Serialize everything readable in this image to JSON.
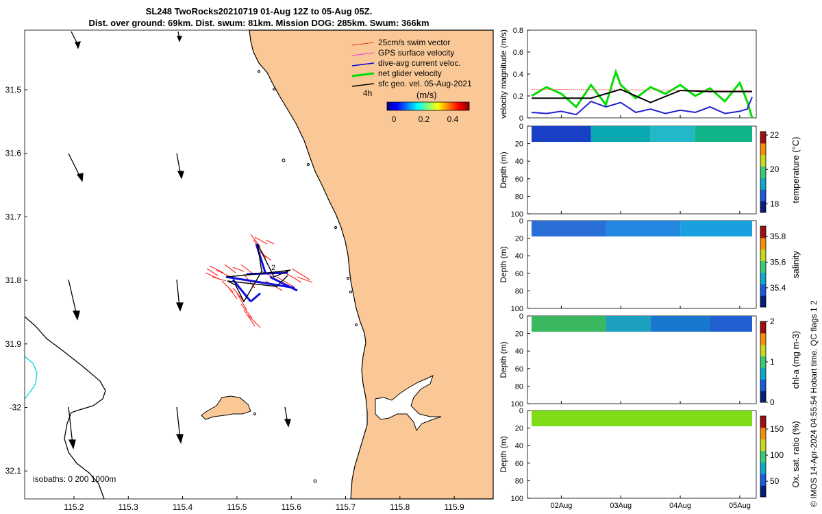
{
  "title": {
    "line1": "SL248 TwoRocks20210719 01-Aug 12Z to 05-Aug 05Z.",
    "line2": "Dist. over ground: 69km. Dist. swum: 81km. Mission DOG: 285km. Swum: 366km"
  },
  "map": {
    "lat_ticks": [
      "31.5",
      "31.6",
      "31.7",
      "31.8",
      "31.9",
      "-32",
      "32.1"
    ],
    "lon_ticks": [
      "115.2",
      "115.3",
      "115.4",
      "115.5",
      "115.6",
      "115.7",
      "115.8",
      "115.9"
    ],
    "legend": [
      {
        "label": "25cm/s swim vector",
        "color": "#e00000"
      },
      {
        "label": "GPS surface velocity",
        "color": "#e000e0"
      },
      {
        "label": "dive-avg current veloc.",
        "color": "#0000e0"
      },
      {
        "label": "net glider velocity",
        "color": "#00dd00"
      },
      {
        "label": "sfc geo. vel. 05-Aug-2021",
        "color": "#000000"
      }
    ],
    "time_label": "4h",
    "colorbar_unit": "(m/s)",
    "colorbar_ticks": [
      "0",
      "0.2",
      "0.4"
    ],
    "isobaths_label": "isobaths: 0   200  1000m",
    "waypoint_label": "2",
    "land_color": "#f9c896"
  },
  "credit": "© IMOS 14-Apr-2024 04:55:54 Hobart time. QC flags 1  2",
  "chart_data": [
    {
      "type": "line",
      "ylabel": "velocity magnitude (m/s)",
      "ylim": [
        0,
        0.8
      ],
      "yticks": [
        "0",
        "0.2",
        "0.4",
        "0.6",
        "0.8"
      ],
      "xlim": [
        "2021-08-01T12:00",
        "2021-08-05T05:00"
      ],
      "series": [
        {
          "color": "#00dd00",
          "x": [
            "2021-08-01T12:00",
            "2021-08-01T18:00",
            "2021-08-02T00:00",
            "2021-08-02T06:00",
            "2021-08-02T12:00",
            "2021-08-02T18:00",
            "2021-08-02T22:00",
            "2021-08-03T00:00",
            "2021-08-03T06:00",
            "2021-08-03T12:00",
            "2021-08-03T18:00",
            "2021-08-04T00:00",
            "2021-08-04T06:00",
            "2021-08-04T12:00",
            "2021-08-04T18:00",
            "2021-08-05T00:00",
            "2021-08-05T03:00",
            "2021-08-05T05:00"
          ],
          "y": [
            0.2,
            0.28,
            0.22,
            0.1,
            0.3,
            0.12,
            0.42,
            0.3,
            0.18,
            0.28,
            0.22,
            0.3,
            0.2,
            0.27,
            0.15,
            0.32,
            0.15,
            0
          ]
        },
        {
          "color": "#2020d0",
          "x": [
            "2021-08-01T12:00",
            "2021-08-01T18:00",
            "2021-08-02T00:00",
            "2021-08-02T06:00",
            "2021-08-02T12:00",
            "2021-08-02T18:00",
            "2021-08-03T00:00",
            "2021-08-03T06:00",
            "2021-08-03T12:00",
            "2021-08-03T18:00",
            "2021-08-04T00:00",
            "2021-08-04T06:00",
            "2021-08-04T12:00",
            "2021-08-04T18:00",
            "2021-08-05T00:00",
            "2021-08-05T03:00",
            "2021-08-05T05:00"
          ],
          "y": [
            0.05,
            0.04,
            0.06,
            0.03,
            0.15,
            0.1,
            0.14,
            0.05,
            0.08,
            0.04,
            0.07,
            0.05,
            0.1,
            0.04,
            0.06,
            0.08,
            0.19
          ]
        },
        {
          "color": "#ff6060",
          "x": [
            "2021-08-01T12:00",
            "2021-08-05T05:00"
          ],
          "y": [
            0.26,
            0.25
          ]
        },
        {
          "color": "#000000",
          "x": [
            "2021-08-01T12:00",
            "2021-08-02T12:00",
            "2021-08-03T00:00",
            "2021-08-03T12:00",
            "2021-08-04T00:00",
            "2021-08-04T12:00",
            "2021-08-05T05:00"
          ],
          "y": [
            0.18,
            0.18,
            0.26,
            0.14,
            0.25,
            0.24,
            0.24
          ]
        }
      ]
    },
    {
      "type": "heatmap",
      "ylabel": "Depth (m)",
      "ylim": [
        0,
        100
      ],
      "yticks": [
        "0",
        "20",
        "40",
        "60",
        "80",
        "100"
      ],
      "colorbar_label": "temperature (°C)",
      "colorbar_ticks": [
        "18",
        "20",
        "22"
      ],
      "colorbar_range": [
        17.5,
        22.2
      ],
      "depth_range": [
        0,
        18
      ],
      "segments": [
        {
          "x_start": "2021-08-01T12:00",
          "x_end": "2021-08-02T12:00",
          "color": "#1a40c8"
        },
        {
          "x_start": "2021-08-02T12:00",
          "x_end": "2021-08-03T12:00",
          "color": "#0aa8b0"
        },
        {
          "x_start": "2021-08-03T12:00",
          "x_end": "2021-08-04T06:00",
          "color": "#22b8c8"
        },
        {
          "x_start": "2021-08-04T06:00",
          "x_end": "2021-08-05T05:00",
          "color": "#0fb488"
        }
      ]
    },
    {
      "type": "heatmap",
      "ylabel": "Depth (m)",
      "ylim": [
        0,
        100
      ],
      "yticks": [
        "0",
        "20",
        "40",
        "60",
        "80",
        "100"
      ],
      "colorbar_label": "salinity",
      "colorbar_ticks": [
        "35.4",
        "35.6",
        "35.8"
      ],
      "colorbar_range": [
        35.25,
        35.88
      ],
      "depth_range": [
        0,
        18
      ],
      "segments": [
        {
          "x_start": "2021-08-01T12:00",
          "x_end": "2021-08-02T18:00",
          "color": "#2a6ed8"
        },
        {
          "x_start": "2021-08-02T18:00",
          "x_end": "2021-08-04T00:00",
          "color": "#2288e0"
        },
        {
          "x_start": "2021-08-04T00:00",
          "x_end": "2021-08-05T05:00",
          "color": "#1aa0e0"
        }
      ]
    },
    {
      "type": "heatmap",
      "ylabel": "Depth (m)",
      "ylim": [
        0,
        100
      ],
      "yticks": [
        "0",
        "20",
        "40",
        "60",
        "80",
        "100"
      ],
      "colorbar_label": "chl-a (mg m-3)",
      "colorbar_ticks": [
        "0",
        "1",
        "2"
      ],
      "colorbar_range": [
        0,
        2
      ],
      "depth_range": [
        0,
        18
      ],
      "segments": [
        {
          "x_start": "2021-08-01T12:00",
          "x_end": "2021-08-02T18:00",
          "color": "#3ab860"
        },
        {
          "x_start": "2021-08-02T18:00",
          "x_end": "2021-08-03T12:00",
          "color": "#1ca0c0"
        },
        {
          "x_start": "2021-08-03T12:00",
          "x_end": "2021-08-04T12:00",
          "color": "#1878d0"
        },
        {
          "x_start": "2021-08-04T12:00",
          "x_end": "2021-08-05T05:00",
          "color": "#2060d0"
        }
      ]
    },
    {
      "type": "heatmap",
      "ylabel": "Depth (m)",
      "ylim": [
        0,
        100
      ],
      "yticks": [
        "0",
        "20",
        "40",
        "60",
        "80",
        "100"
      ],
      "xticks": [
        {
          "date": "2021-08-02T00:00",
          "label": "02Aug"
        },
        {
          "date": "2021-08-03T00:00",
          "label": "03Aug"
        },
        {
          "date": "2021-08-04T00:00",
          "label": "04Aug"
        },
        {
          "date": "2021-08-05T00:00",
          "label": "05Aug"
        }
      ],
      "colorbar_label": "Ox. sat. ratio (%)",
      "colorbar_ticks": [
        "50",
        "100",
        "150"
      ],
      "colorbar_range": [
        20,
        175
      ],
      "depth_range": [
        0,
        18
      ],
      "segments": [
        {
          "x_start": "2021-08-01T12:00",
          "x_end": "2021-08-05T05:00",
          "color": "#80dc18"
        }
      ]
    }
  ]
}
